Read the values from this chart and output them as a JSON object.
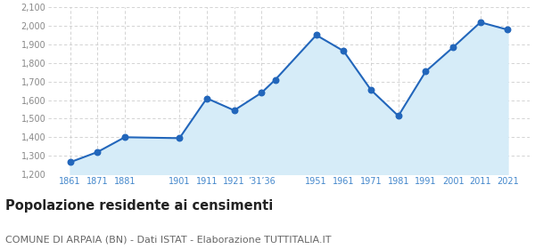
{
  "years": [
    1861,
    1871,
    1881,
    1901,
    1911,
    1921,
    1931,
    1936,
    1951,
    1961,
    1971,
    1981,
    1991,
    2001,
    2011,
    2021
  ],
  "population": [
    1265,
    1320,
    1400,
    1395,
    1610,
    1545,
    1640,
    1710,
    1951,
    1865,
    1655,
    1515,
    1755,
    1885,
    2020,
    1980
  ],
  "line_color": "#2266bb",
  "fill_color": "#d6ecf8",
  "marker_color": "#2266bb",
  "grid_color": "#cccccc",
  "bg_color": "#ffffff",
  "ylim": [
    1200,
    2100
  ],
  "yticks": [
    1200,
    1300,
    1400,
    1500,
    1600,
    1700,
    1800,
    1900,
    2000,
    2100
  ],
  "xlim_left": 1853,
  "xlim_right": 2029,
  "x_tick_positions": [
    1861,
    1871,
    1881,
    1901,
    1911,
    1921,
    1931,
    1951,
    1961,
    1971,
    1981,
    1991,
    2001,
    2011,
    2021
  ],
  "x_tick_labels": [
    "1861",
    "1871",
    "1881",
    "1901",
    "1911",
    "1921",
    "’31’36",
    "1951",
    "1961",
    "1971",
    "1981",
    "1991",
    "2001",
    "2011",
    "2021"
  ],
  "title": "Popolazione residente ai censimenti",
  "subtitle": "COMUNE DI ARPAIA (BN) - Dati ISTAT - Elaborazione TUTTITALIA.IT",
  "title_fontsize": 10.5,
  "subtitle_fontsize": 8,
  "tick_label_color": "#4488cc",
  "ytick_color": "#888888",
  "marker_size": 22
}
